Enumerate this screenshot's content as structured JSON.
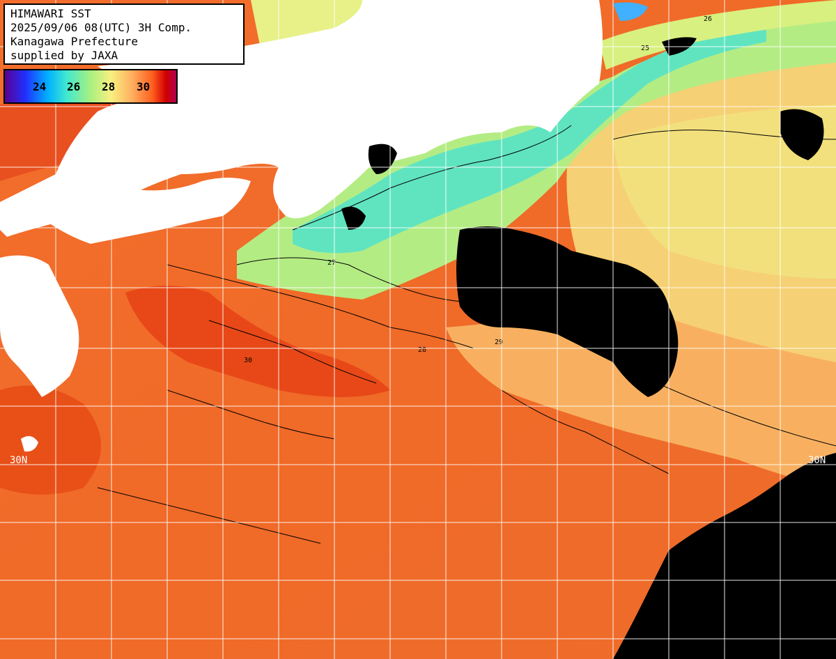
{
  "header": {
    "line1": "HIMAWARI SST",
    "line2": "2025/09/06 08(UTC) 3H Comp.",
    "line3": "Kanagawa Prefecture",
    "line4": "supplied by JAXA"
  },
  "legend": {
    "ticks": [
      "24",
      "26",
      "28",
      "30"
    ],
    "colors": [
      "#5a0090",
      "#2030ff",
      "#00b0ff",
      "#40e8d0",
      "#a8f080",
      "#f8f080",
      "#ffb060",
      "#ff6020",
      "#d00000",
      "#b00050"
    ]
  },
  "grid": {
    "latitude_label_left": "30N",
    "latitude_label_right": "30N"
  },
  "contours": [
    "25",
    "26",
    "27",
    "28",
    "29",
    "30"
  ],
  "colors": {
    "land": "#ffffff",
    "cloud_mask": "#000000",
    "warm_sea": "#f06a28",
    "cool_sea": "#a8f080"
  }
}
